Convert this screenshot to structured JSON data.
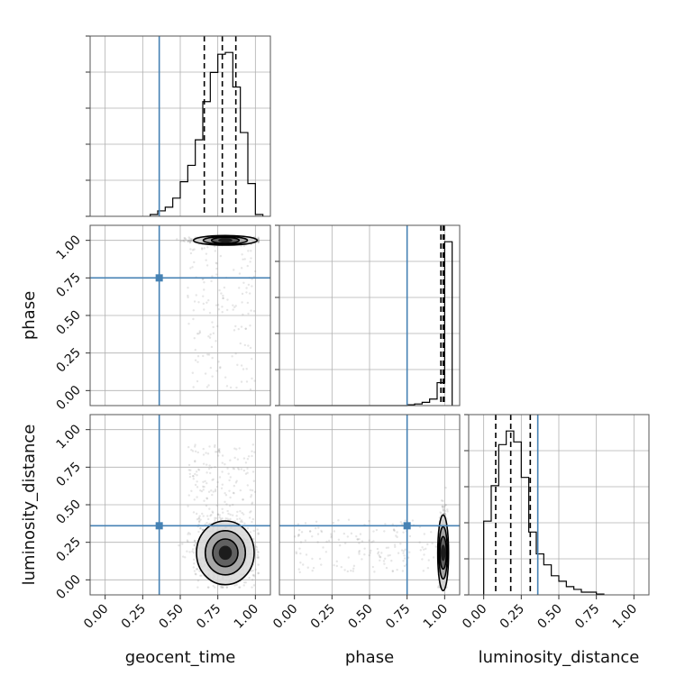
{
  "chart_data": {
    "type": "corner",
    "parameters": [
      "geocent_time",
      "phase",
      "luminosity_distance"
    ],
    "axis_range": [
      -0.1,
      1.1
    ],
    "tick_labels": [
      "0.00",
      "0.25",
      "0.50",
      "0.75",
      "1.00"
    ],
    "tick_values": [
      0,
      0.25,
      0.5,
      0.75,
      1.0
    ],
    "grid": true,
    "truths": {
      "geocent_time": 0.36,
      "phase": 0.75,
      "luminosity_distance": 0.36
    },
    "truth_color": "#4682b4",
    "quantiles": {
      "geocent_time": [
        0.66,
        0.78,
        0.87
      ],
      "phase": [
        0.975,
        0.99,
        0.997
      ],
      "luminosity_distance": [
        0.08,
        0.18,
        0.31
      ]
    },
    "histograms": {
      "geocent_time": {
        "edges": [
          0.3,
          0.35,
          0.4,
          0.45,
          0.5,
          0.55,
          0.6,
          0.65,
          0.7,
          0.75,
          0.8,
          0.85,
          0.9,
          0.95,
          1.0,
          1.05
        ],
        "counts": [
          1,
          3,
          5,
          10,
          19,
          28,
          42,
          63,
          79,
          89,
          90,
          71,
          46,
          18,
          1
        ]
      },
      "phase": {
        "edges": [
          0.0,
          0.05,
          0.1,
          0.15,
          0.2,
          0.25,
          0.3,
          0.35,
          0.4,
          0.45,
          0.5,
          0.55,
          0.6,
          0.65,
          0.7,
          0.75,
          0.8,
          0.85,
          0.9,
          0.95,
          1.0,
          1.05
        ],
        "counts": [
          0,
          0,
          0,
          0,
          0,
          0,
          0,
          0,
          0,
          0,
          0,
          0,
          0,
          0,
          0,
          0.5,
          1,
          2,
          4,
          14,
          100
        ]
      },
      "luminosity_distance": {
        "edges": [
          0.0,
          0.05,
          0.1,
          0.15,
          0.2,
          0.25,
          0.3,
          0.35,
          0.4,
          0.45,
          0.5,
          0.55,
          0.6,
          0.65,
          0.7,
          0.75,
          0.8
        ],
        "counts": [
          27,
          40,
          55,
          60,
          56,
          43,
          23,
          15,
          11,
          7,
          5,
          3,
          2,
          1,
          1,
          0.3
        ]
      }
    },
    "density_modes": [
      {
        "x": "geocent_time",
        "y": "phase",
        "center": [
          0.8,
          1.0
        ],
        "spread": [
          0.1,
          0.01
        ]
      },
      {
        "x": "geocent_time",
        "y": "luminosity_distance",
        "center": [
          0.8,
          0.18
        ],
        "spread": [
          0.09,
          0.1
        ]
      },
      {
        "x": "phase",
        "y": "luminosity_distance",
        "center": [
          0.99,
          0.18
        ],
        "spread": [
          0.012,
          0.12
        ]
      }
    ]
  }
}
